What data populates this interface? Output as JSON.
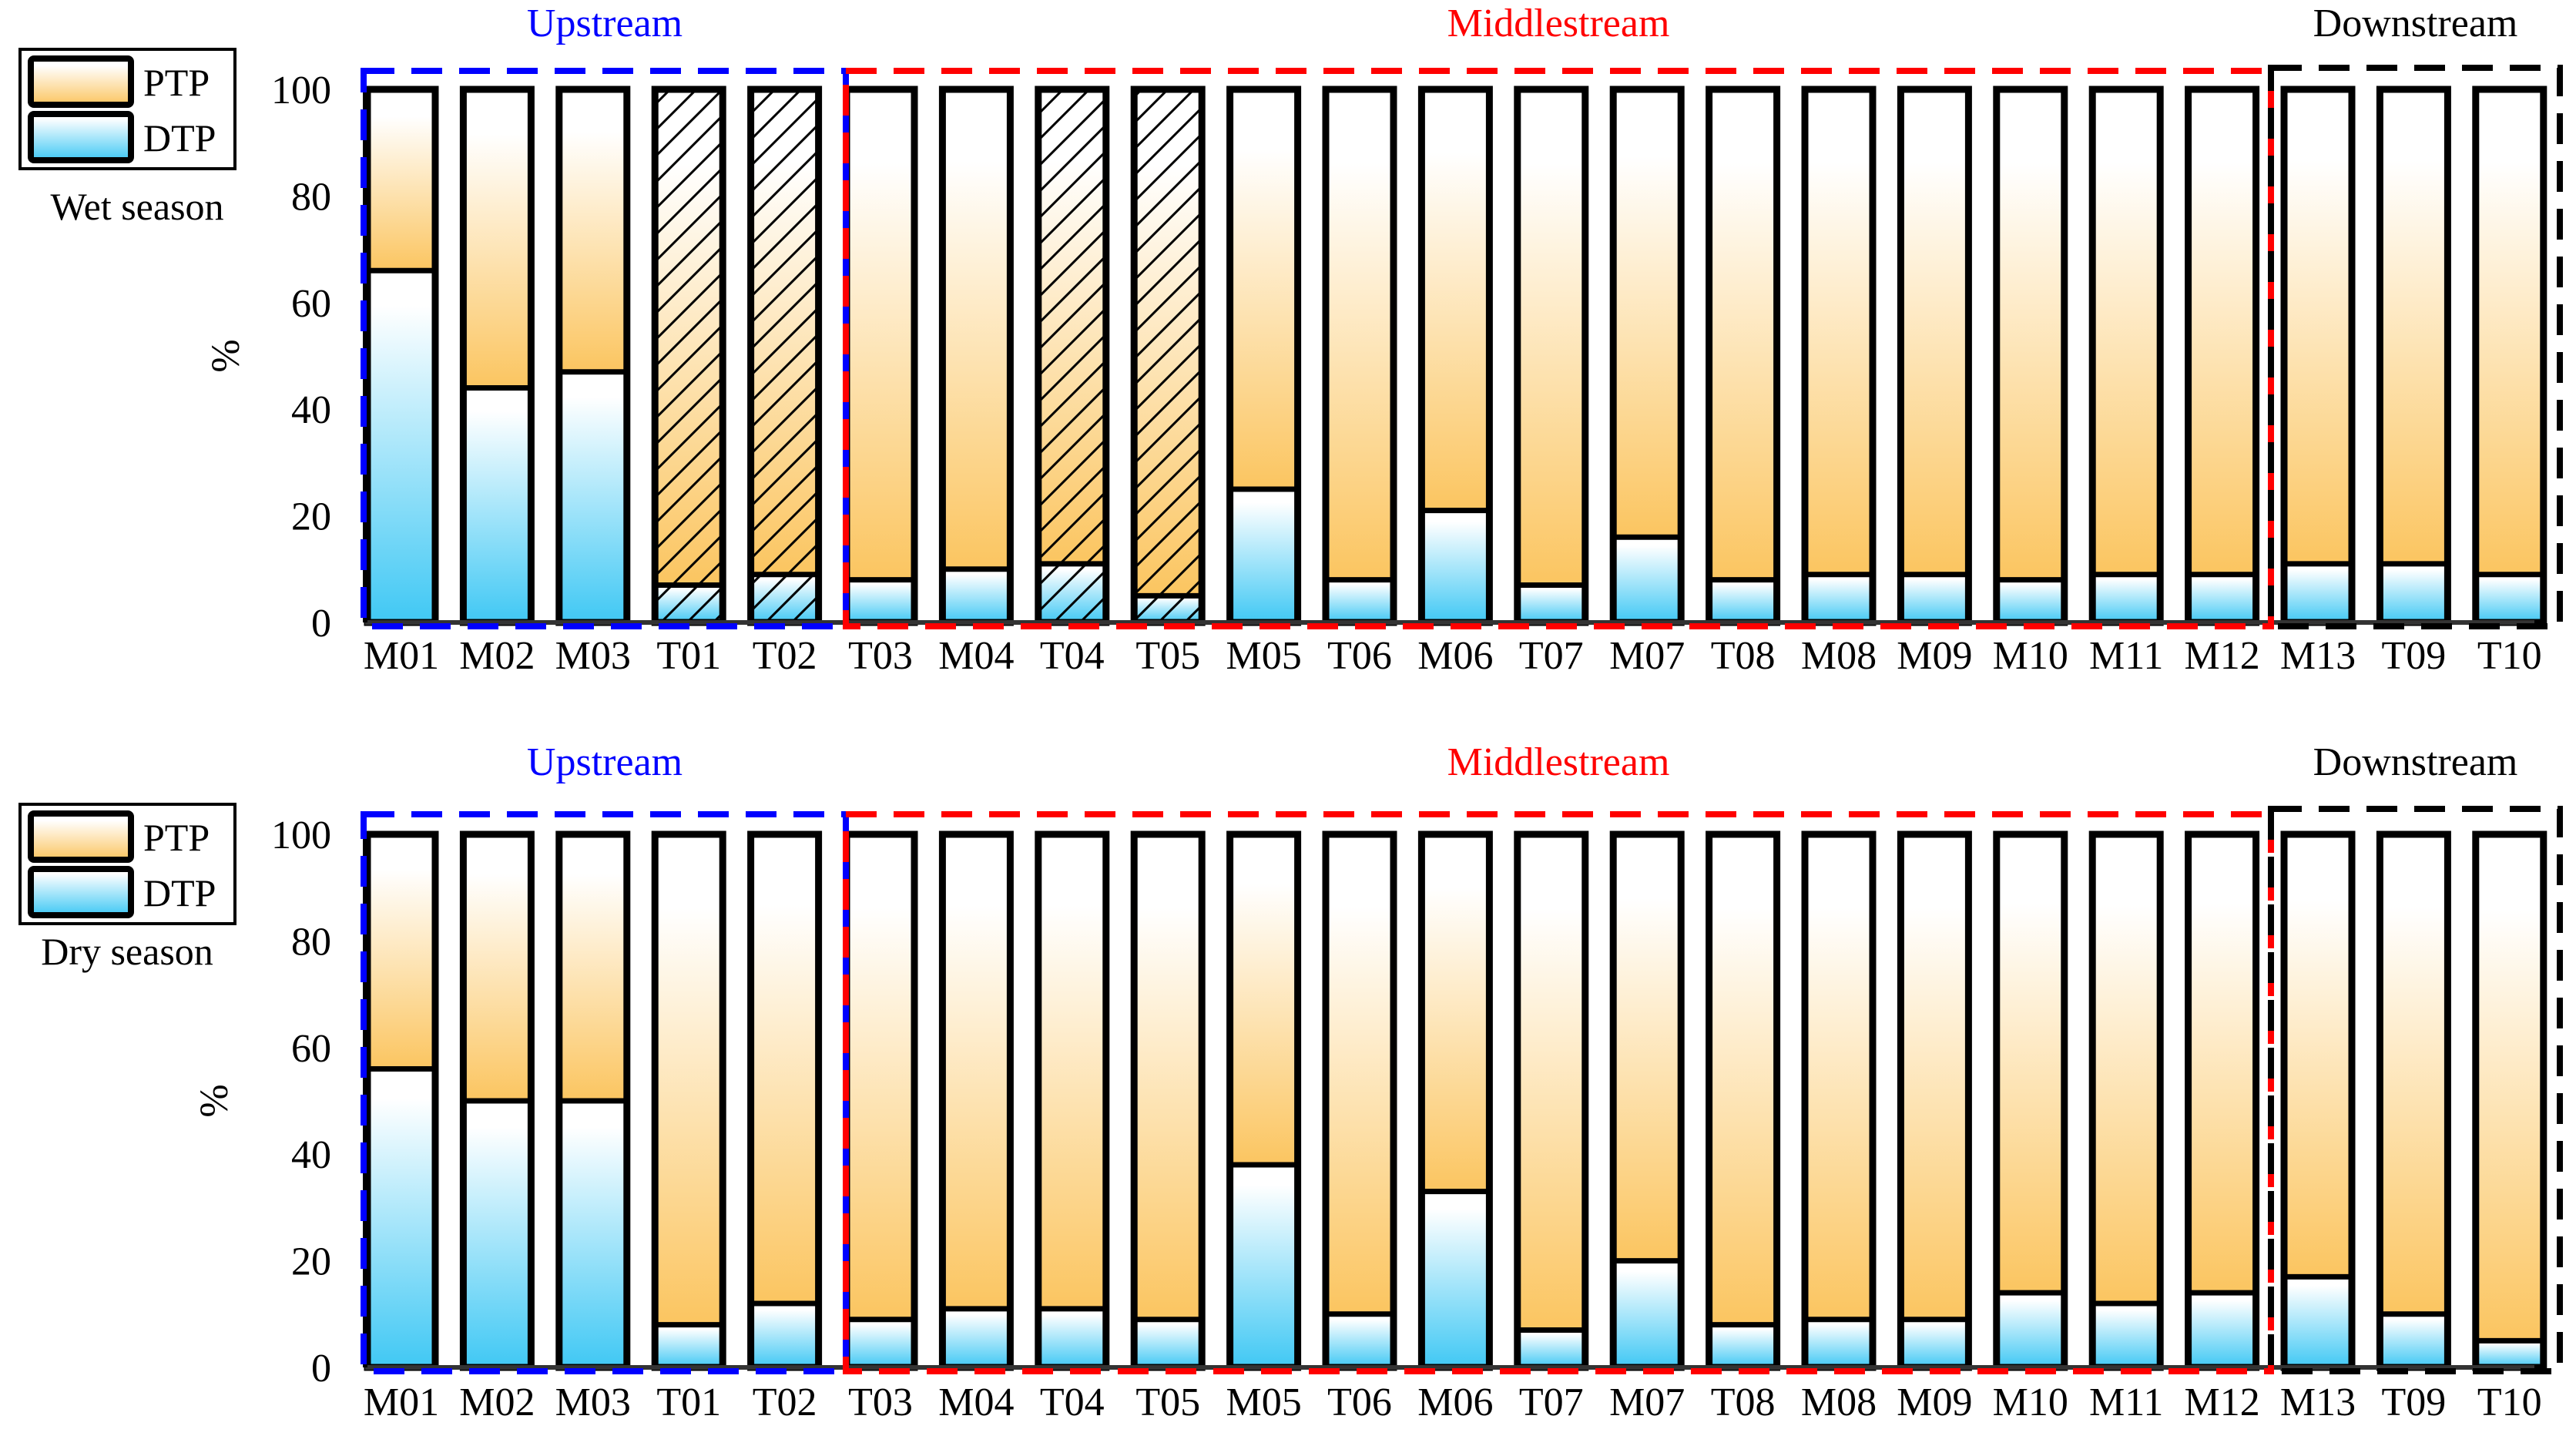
{
  "chart_data": [
    {
      "type": "bar",
      "stacked": true,
      "title": "Wet season",
      "ylabel": "%",
      "ylim": [
        0,
        100
      ],
      "yticks": [
        "0",
        "20",
        "40",
        "60",
        "80",
        "100"
      ],
      "legend": {
        "placement": "top-left",
        "entries": [
          "PTP",
          "DTP"
        ]
      },
      "categories": [
        "M01",
        "M02",
        "M03",
        "T01",
        "T02",
        "T03",
        "M04",
        "T04",
        "T05",
        "M05",
        "T06",
        "M06",
        "T07",
        "M07",
        "T08",
        "M08",
        "M09",
        "M10",
        "M11",
        "M12",
        "M13",
        "T09",
        "T10"
      ],
      "series": [
        {
          "name": "DTP",
          "values": [
            66,
            44,
            47,
            7,
            9,
            8,
            10,
            11,
            5,
            25,
            8,
            21,
            7,
            16,
            8,
            9,
            9,
            8,
            9,
            9,
            11,
            11,
            9
          ]
        },
        {
          "name": "PTP",
          "values": [
            34,
            56,
            53,
            93,
            91,
            92,
            90,
            89,
            95,
            75,
            92,
            79,
            93,
            84,
            92,
            91,
            91,
            92,
            91,
            91,
            89,
            89,
            91
          ]
        }
      ],
      "hatched": [
        "T01",
        "T02",
        "T04",
        "T05"
      ],
      "regions": [
        {
          "label": "Upstream",
          "from": "M01",
          "to": "T02",
          "color": "#0000ff"
        },
        {
          "label": "Middlestream",
          "from": "T03",
          "to": "M12",
          "color": "#ff0000"
        },
        {
          "label": "Downstream",
          "from": "M13",
          "to": "T10",
          "color": "#000000"
        }
      ]
    },
    {
      "type": "bar",
      "stacked": true,
      "title": "Dry season",
      "ylabel": "%",
      "ylim": [
        0,
        100
      ],
      "yticks": [
        "0",
        "20",
        "40",
        "60",
        "80",
        "100"
      ],
      "legend": {
        "placement": "top-left",
        "entries": [
          "PTP",
          "DTP"
        ]
      },
      "categories": [
        "M01",
        "M02",
        "M03",
        "T01",
        "T02",
        "T03",
        "M04",
        "T04",
        "T05",
        "M05",
        "T06",
        "M06",
        "T07",
        "M07",
        "T08",
        "M08",
        "M09",
        "M10",
        "M11",
        "M12",
        "M13",
        "T09",
        "T10"
      ],
      "series": [
        {
          "name": "DTP",
          "values": [
            56,
            50,
            50,
            8,
            12,
            9,
            11,
            11,
            9,
            38,
            10,
            33,
            7,
            20,
            8,
            9,
            9,
            14,
            12,
            14,
            17,
            10,
            5
          ]
        },
        {
          "name": "PTP",
          "values": [
            44,
            50,
            50,
            92,
            88,
            91,
            89,
            89,
            91,
            62,
            90,
            67,
            93,
            80,
            92,
            91,
            91,
            86,
            88,
            86,
            83,
            90,
            95
          ]
        }
      ],
      "hatched": [],
      "regions": [
        {
          "label": "Upstream",
          "from": "M01",
          "to": "T02",
          "color": "#0000ff"
        },
        {
          "label": "Middlestream",
          "from": "T03",
          "to": "M12",
          "color": "#ff0000"
        },
        {
          "label": "Downstream",
          "from": "M13",
          "to": "T10",
          "color": "#000000"
        }
      ]
    }
  ],
  "colors": {
    "ptp_light": "#ffffff",
    "ptp_dark": "#fbc560",
    "dtp_light": "#ffffff",
    "dtp_dark": "#40c8f4"
  }
}
